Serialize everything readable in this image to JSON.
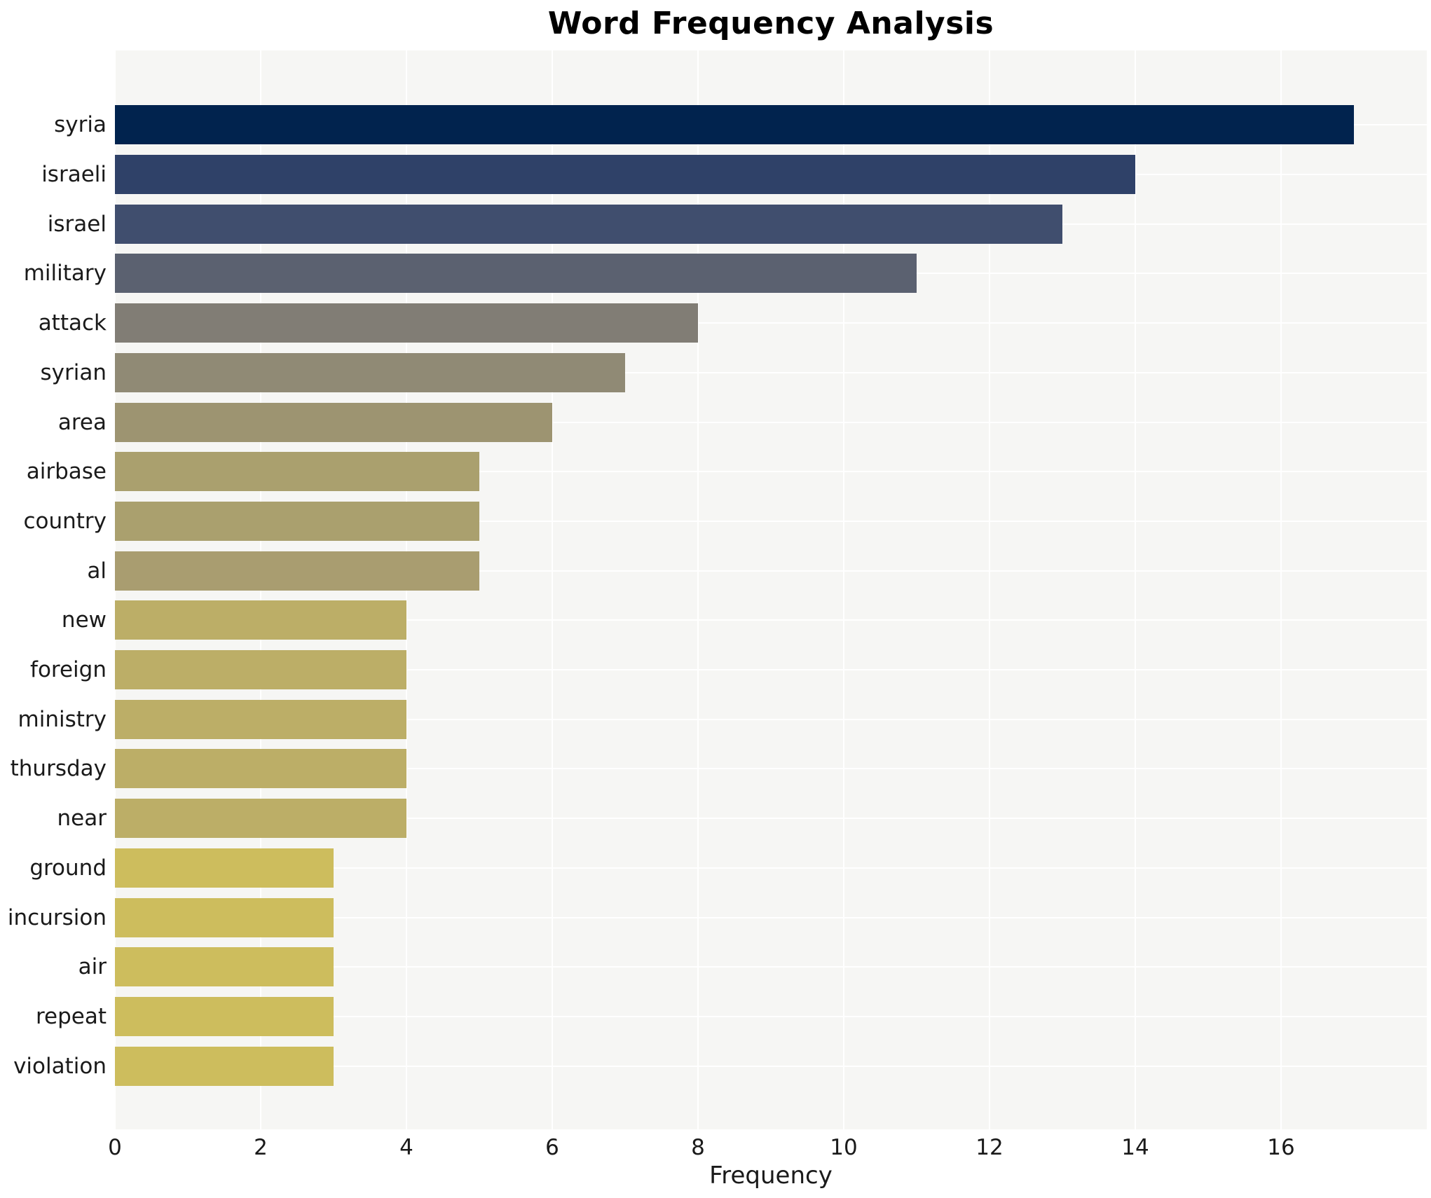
{
  "chart_data": {
    "type": "bar",
    "orientation": "horizontal",
    "title": "Word Frequency Analysis",
    "xlabel": "Frequency",
    "ylabel": "",
    "categories": [
      "syria",
      "israeli",
      "israel",
      "military",
      "attack",
      "syrian",
      "area",
      "airbase",
      "country",
      "al",
      "new",
      "foreign",
      "ministry",
      "thursday",
      "near",
      "ground",
      "incursion",
      "air",
      "repeat",
      "violation"
    ],
    "values": [
      17,
      14,
      13,
      11,
      8,
      7,
      6,
      5,
      5,
      5,
      4,
      4,
      4,
      4,
      4,
      3,
      3,
      3,
      3,
      3
    ],
    "bar_colors": [
      "#01234e",
      "#2f4168",
      "#404e6e",
      "#5b6170",
      "#817d75",
      "#908a75",
      "#9d9471",
      "#aaa06e",
      "#aaa06e",
      "#a99d70",
      "#bcae67",
      "#bcae67",
      "#bcae67",
      "#bcae67",
      "#bcae67",
      "#cdbd5d",
      "#cdbd5d",
      "#cdbd5d",
      "#cdbd5d",
      "#cdbd5d"
    ],
    "xticks": [
      0,
      2,
      4,
      6,
      8,
      10,
      12,
      14,
      16
    ],
    "xlim": [
      0,
      18
    ],
    "grid": true,
    "legend_position": "none"
  },
  "style": {
    "figure_background": "#ffffff",
    "plot_background": "#f6f6f4",
    "grid_color": "#ffffff",
    "text_color": "#1a1a1a",
    "title_color": "#000000"
  }
}
